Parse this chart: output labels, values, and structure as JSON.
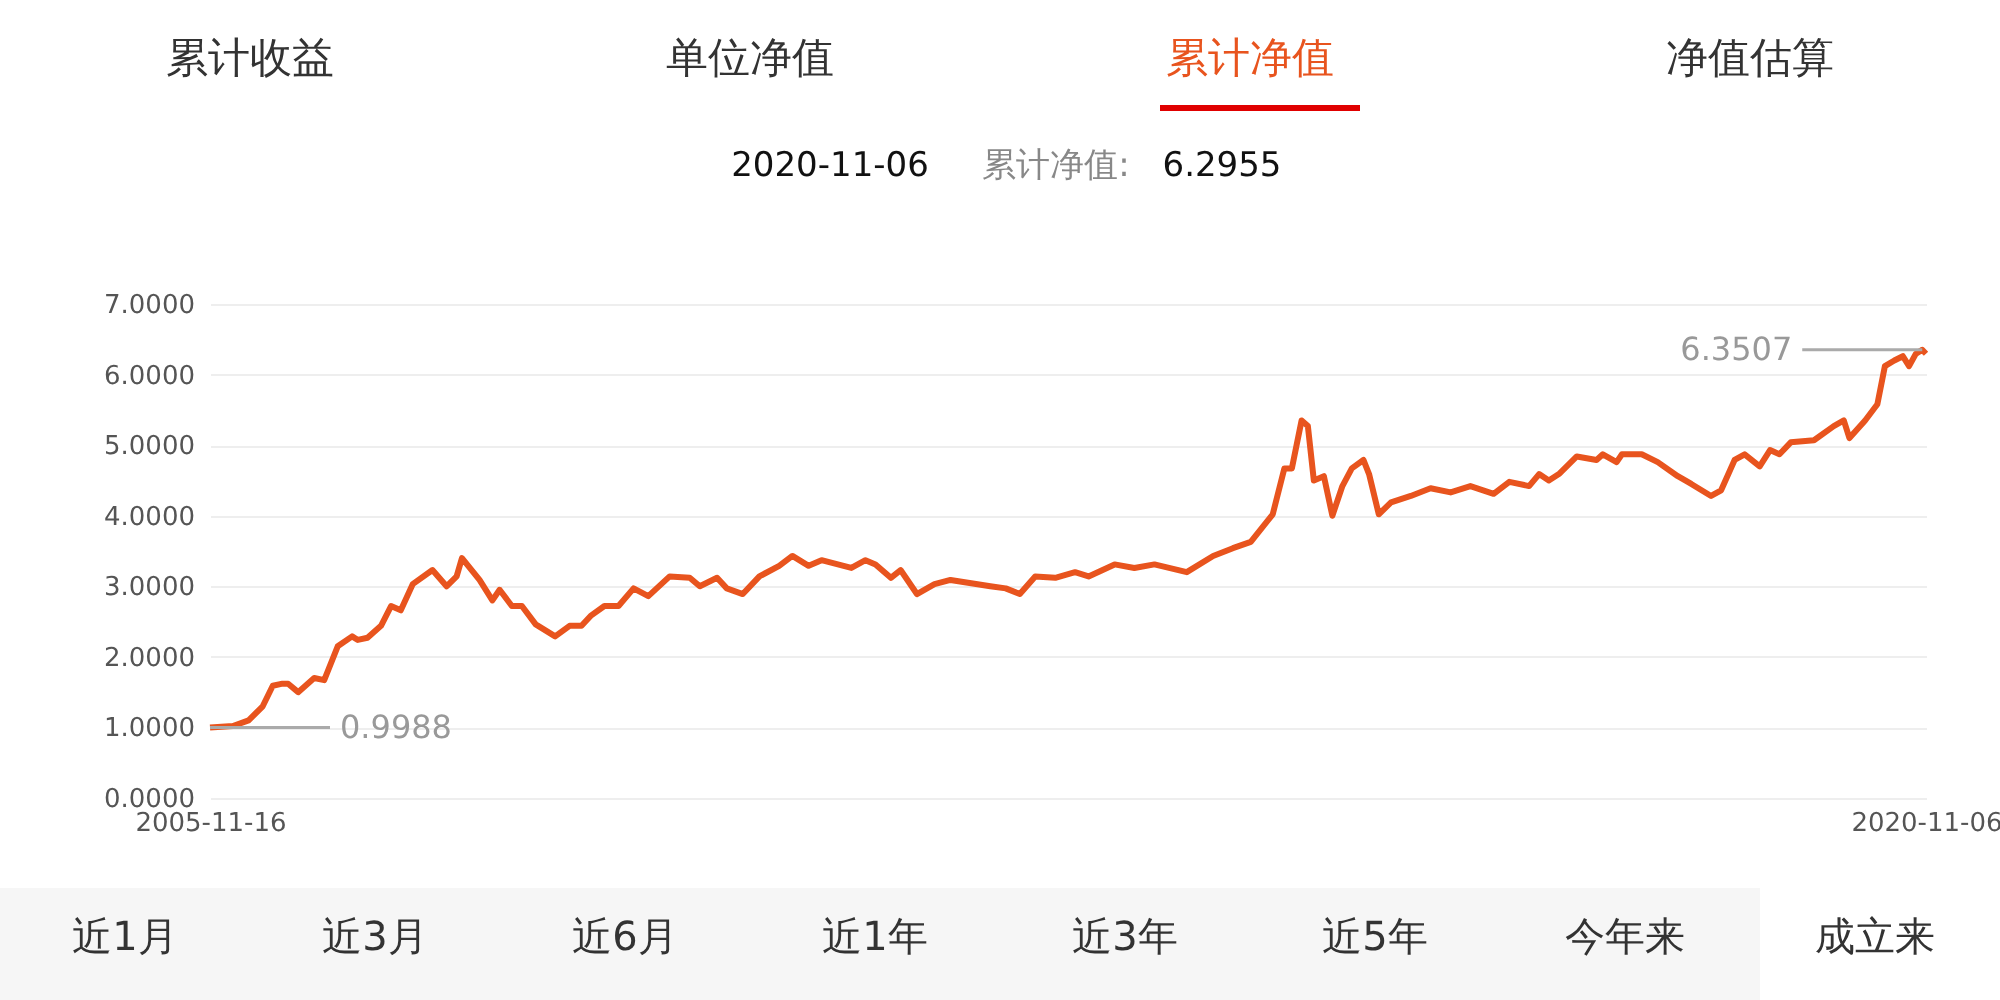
{
  "chart_data": {
    "type": "line",
    "annotations": [
      "累计收益",
      "单位净值",
      "累计净值",
      "净值估算",
      "2020-11-06",
      "累计净值:",
      "6.2955",
      "近1月",
      "近3月",
      "近6月",
      "近1年",
      "近3年",
      "近5年",
      "今年来",
      "成立来",
      {
        "text": "0.9988",
        "x": "2005-11-16",
        "y": 0.9988
      },
      {
        "text": "6.3507",
        "x": "2020-10-25",
        "y": 6.3507
      }
    ],
    "x": [
      "2005-11-16",
      "2006-01-28",
      "2006-03-19",
      "2006-05-03",
      "2006-06-04",
      "2006-07-05",
      "2006-07-23",
      "2006-08-24",
      "2006-10-14",
      "2006-11-15",
      "2006-12-28",
      "2007-02-12",
      "2007-03-02",
      "2007-04-02",
      "2007-05-15",
      "2007-06-16",
      "2007-07-17",
      "2007-08-24",
      "2007-10-26",
      "2007-12-10",
      "2008-01-11",
      "2008-01-28",
      "2008-03-24",
      "2008-05-04",
      "2008-05-27",
      "2008-07-05",
      "2008-08-06",
      "2008-09-19",
      "2008-11-20",
      "2009-01-05",
      "2009-02-12",
      "2009-03-13",
      "2009-04-26",
      "2009-06-10",
      "2009-07-28",
      "2009-09-13",
      "2009-11-20",
      "2010-01-23",
      "2010-02-24",
      "2010-04-20",
      "2010-05-21",
      "2010-07-11",
      "2010-09-02",
      "2010-11-04",
      "2010-12-16",
      "2011-02-06",
      "2011-03-19",
      "2011-06-22",
      "2011-08-06",
      "2011-09-07",
      "2011-10-26",
      "2011-11-26",
      "2012-01-17",
      "2012-03-13",
      "2012-05-03",
      "2012-09-07",
      "2012-10-26",
      "2012-12-10",
      "2013-01-28",
      "2013-04-02",
      "2013-06-04",
      "2013-07-17",
      "2013-10-08",
      "2013-12-10",
      "2014-02-12",
      "2014-05-26",
      "2014-08-18",
      "2014-10-20",
      "2014-12-16",
      "2015-02-24",
      "2015-04-02",
      "2015-04-26",
      "2015-05-27",
      "2015-06-16",
      "2015-07-05",
      "2015-08-06",
      "2015-09-02",
      "2015-10-04",
      "2015-11-03",
      "2015-12-10",
      "2015-12-28",
      "2016-01-28",
      "2016-03-07",
      "2016-05-09",
      "2016-07-11",
      "2016-09-13",
      "2016-11-15",
      "2017-01-28",
      "2017-03-19",
      "2017-05-21",
      "2017-06-22",
      "2017-07-23",
      "2017-08-24",
      "2017-10-20",
      "2017-12-22",
      "2018-01-11",
      "2018-02-24",
      "2018-03-13",
      "2018-05-15",
      "2018-07-05",
      "2018-09-07",
      "2018-10-20",
      "2018-12-22",
      "2019-01-23",
      "2019-03-07",
      "2019-04-08",
      "2019-05-26",
      "2019-06-28",
      "2019-07-28",
      "2019-09-02",
      "2019-11-15",
      "2020-01-17",
      "2020-02-18",
      "2020-03-07",
      "2020-04-26",
      "2020-06-04",
      "2020-06-28",
      "2020-07-28",
      "2020-08-24",
      "2020-09-13",
      "2020-10-04",
      "2020-10-25",
      "2020-11-06"
    ],
    "series": [
      {
        "color": "#e8541e",
        "values": [
          0.9988,
          1.02,
          1.1,
          1.3,
          1.59,
          1.62,
          1.62,
          1.5,
          1.7,
          1.67,
          2.15,
          2.29,
          2.24,
          2.27,
          2.44,
          2.72,
          2.66,
          3.03,
          3.23,
          3.0,
          3.14,
          3.4,
          3.09,
          2.8,
          2.95,
          2.72,
          2.72,
          2.46,
          2.29,
          2.44,
          2.44,
          2.58,
          2.72,
          2.72,
          2.97,
          2.86,
          3.14,
          3.12,
          3.0,
          3.12,
          2.97,
          2.89,
          3.14,
          3.29,
          3.43,
          3.29,
          3.37,
          3.26,
          3.37,
          3.31,
          3.12,
          3.23,
          2.89,
          3.03,
          3.09,
          3.0,
          2.97,
          2.89,
          3.14,
          3.12,
          3.2,
          3.14,
          3.31,
          3.26,
          3.31,
          3.2,
          3.43,
          3.54,
          3.63,
          4.02,
          4.67,
          4.67,
          5.35,
          5.27,
          4.5,
          4.56,
          4.0,
          4.42,
          4.67,
          4.79,
          4.59,
          4.02,
          4.19,
          4.28,
          4.39,
          4.33,
          4.42,
          4.31,
          4.48,
          4.42,
          4.59,
          4.5,
          4.59,
          4.84,
          4.79,
          4.87,
          4.76,
          4.87,
          4.87,
          4.76,
          4.56,
          4.45,
          4.28,
          4.36,
          4.79,
          4.87,
          4.7,
          4.93,
          4.87,
          5.04,
          5.07,
          5.27,
          5.35,
          5.1,
          5.35,
          5.58,
          6.12,
          6.2,
          6.26,
          6.12,
          6.29,
          6.3507,
          6.2955
        ]
      }
    ],
    "xlim": [
      "2005-11-16",
      "2020-11-06"
    ],
    "xticks": [
      {
        "value": "2005-11-16",
        "label": "2005-11-16"
      },
      {
        "value": "2020-11-06",
        "label": "2020-11-06"
      }
    ],
    "ylim": [
      0,
      7
    ],
    "yticks": [
      {
        "value": 0,
        "label": "0.0000"
      },
      {
        "value": 1,
        "label": "1.0000"
      },
      {
        "value": 2,
        "label": "2.0000"
      },
      {
        "value": 3,
        "label": "3.0000"
      },
      {
        "value": 4,
        "label": "4.0000"
      },
      {
        "value": 5,
        "label": "5.0000"
      },
      {
        "value": 6,
        "label": "6.0000"
      },
      {
        "value": 7,
        "label": "7.0000"
      }
    ],
    "grid": "y",
    "marker": "none",
    "line_style": "solid"
  }
}
